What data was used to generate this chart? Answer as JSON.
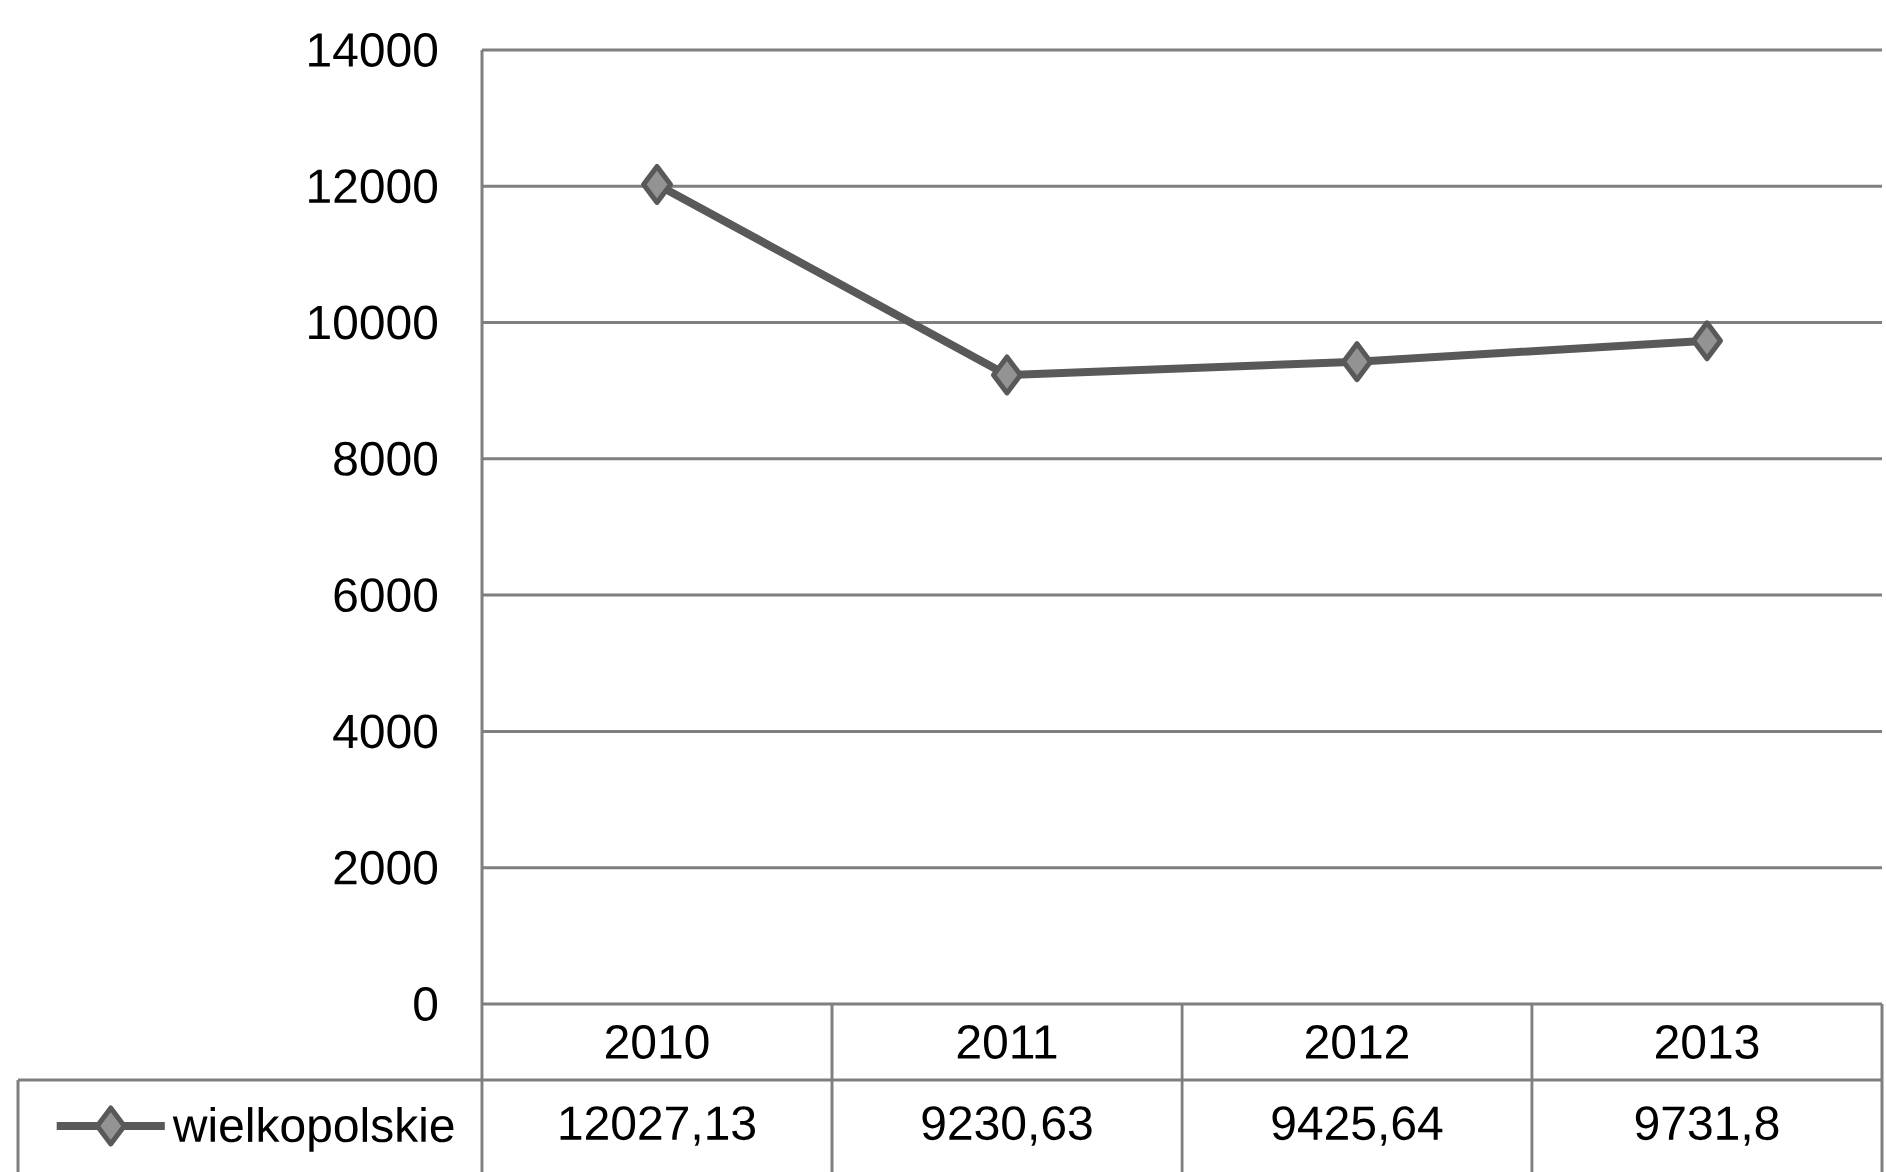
{
  "chart_data": {
    "type": "line",
    "categories": [
      "2010",
      "2011",
      "2012",
      "2013"
    ],
    "series": [
      {
        "name": "wielkopolskie",
        "color": "#595959",
        "values": [
          12027.13,
          9230.63,
          9425.64,
          9731.8
        ],
        "value_labels": [
          "12027,13",
          "9230,63",
          "9425,64",
          "9731,8"
        ]
      }
    ],
    "ylim": [
      0,
      14000
    ],
    "yticks": [
      0,
      2000,
      4000,
      6000,
      8000,
      10000,
      12000,
      14000
    ],
    "grid": "y",
    "legend": "bottom left",
    "marker": "diamond",
    "line_style": "solid"
  }
}
